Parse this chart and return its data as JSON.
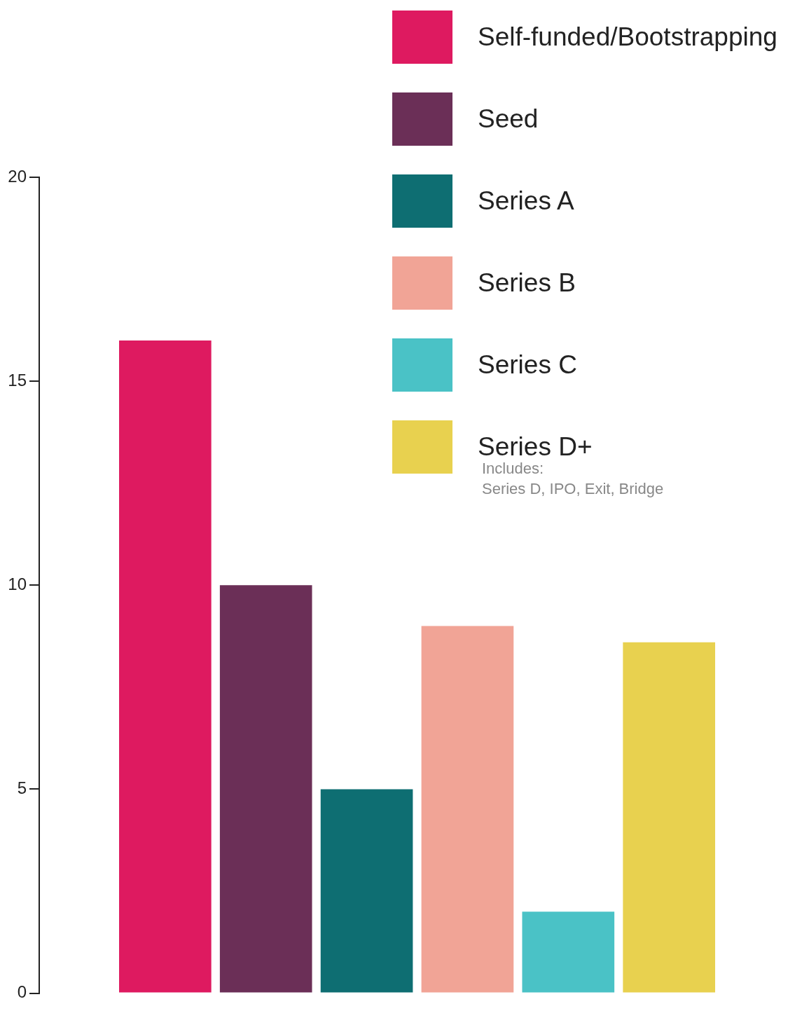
{
  "chart_data": {
    "type": "bar",
    "categories": [
      null
    ],
    "series": [
      {
        "name": "Self-funded/Bootstrapping",
        "color": "#de1a60",
        "values": [
          16
        ]
      },
      {
        "name": "Seed",
        "color": "#6b2f57",
        "values": [
          10
        ]
      },
      {
        "name": "Series A",
        "color": "#0e6e72",
        "values": [
          5
        ]
      },
      {
        "name": "Series B",
        "color": "#f1a496",
        "values": [
          9
        ]
      },
      {
        "name": "Series C",
        "color": "#4ac2c6",
        "values": [
          2
        ]
      },
      {
        "name": "Series D+",
        "color": "#e8d14f",
        "values": [
          8.6
        ]
      }
    ],
    "ylim": [
      0,
      20
    ],
    "yticks": [
      0,
      5,
      10,
      15,
      20
    ],
    "grid": false,
    "legend": "top right",
    "annotations": [
      "Includes:\nSeries D, IPO, Exit, Bridge"
    ]
  }
}
